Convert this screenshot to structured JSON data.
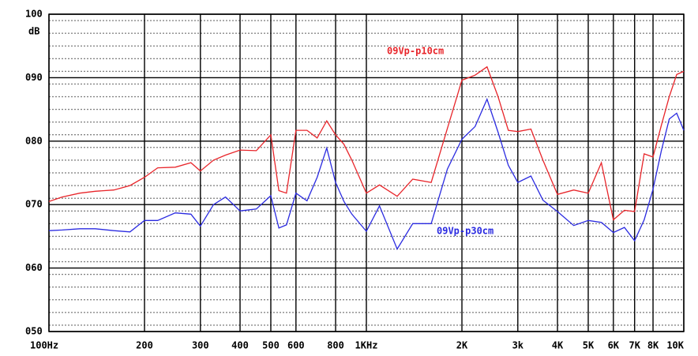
{
  "chart_data": {
    "type": "line",
    "ylabel": "dB",
    "x": [
      100,
      110,
      125,
      140,
      160,
      180,
      200,
      220,
      250,
      280,
      300,
      330,
      360,
      400,
      450,
      500,
      530,
      560,
      600,
      650,
      700,
      750,
      800,
      850,
      900,
      1000,
      1100,
      1250,
      1400,
      1600,
      1800,
      2000,
      2200,
      2400,
      2600,
      2800,
      3000,
      3300,
      3600,
      4000,
      4500,
      5000,
      5500,
      6000,
      6500,
      7000,
      7500,
      8000,
      8500,
      9000,
      9500,
      10000
    ],
    "series": [
      {
        "name": "09Vp-p10cm",
        "color": "#e8252a",
        "values": [
          70.5,
          71.2,
          71.8,
          72.1,
          72.3,
          73,
          74.3,
          75.8,
          75.9,
          76.6,
          75.3,
          77,
          77.8,
          78.6,
          78.5,
          81,
          72.2,
          71.8,
          81.7,
          81.7,
          80.5,
          83.2,
          81,
          79.5,
          77,
          71.8,
          73.1,
          71.3,
          74,
          73.5,
          82,
          89.6,
          90.4,
          91.7,
          87,
          81.7,
          81.5,
          81.9,
          77,
          71.6,
          72.3,
          71.8,
          76.6,
          67.6,
          69.1,
          68.9,
          78,
          77.5,
          82.5,
          87,
          90.5,
          91
        ]
      },
      {
        "name": "09Vp-p30cm",
        "color": "#2a2ae0",
        "values": [
          65.9,
          66,
          66.2,
          66.2,
          65.9,
          65.7,
          67.5,
          67.5,
          68.7,
          68.5,
          66.6,
          70,
          71.2,
          69,
          69.3,
          71.4,
          66.3,
          66.8,
          71.8,
          70.6,
          74.3,
          78.9,
          73.5,
          70.5,
          68.5,
          65.8,
          69.8,
          63,
          67,
          67,
          75.6,
          80.3,
          82.3,
          86.6,
          81.4,
          76.2,
          73.5,
          74.5,
          70.7,
          68.9,
          66.7,
          67.5,
          67.2,
          65.6,
          66.4,
          64.3,
          67.6,
          72.4,
          78.5,
          83.5,
          84.4,
          81.7
        ]
      }
    ],
    "xscale": "log",
    "xlim": [
      100,
      10000
    ],
    "xticks": [
      {
        "value": 100,
        "label": "100Hz"
      },
      200,
      300,
      400,
      500,
      600,
      800,
      {
        "value": 1000,
        "label": "1KHz"
      },
      {
        "value": 2000,
        "label": "2K"
      },
      {
        "value": 3000,
        "label": "3k"
      },
      {
        "value": 4000,
        "label": "4K"
      },
      {
        "value": 5000,
        "label": "5K"
      },
      {
        "value": 6000,
        "label": "6K"
      },
      {
        "value": 7000,
        "label": "7K"
      },
      {
        "value": 8000,
        "label": "8K"
      },
      {
        "value": 10000,
        "label": "10K"
      }
    ],
    "ylim": [
      50,
      100
    ],
    "yticks": [
      {
        "value": 50,
        "label": "050"
      },
      {
        "value": 60,
        "label": "060"
      },
      {
        "value": 70,
        "label": "070"
      },
      {
        "value": 80,
        "label": "080"
      },
      {
        "value": 90,
        "label": "090"
      },
      100
    ],
    "grid": true
  }
}
